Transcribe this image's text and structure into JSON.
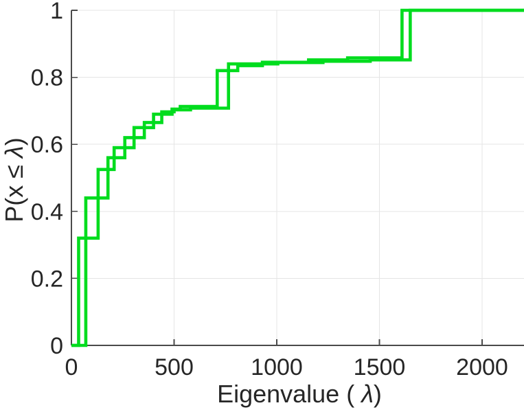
{
  "figure": {
    "background": "#ffffff",
    "kind": "MATLAB-style empirical CDF plot"
  },
  "labels": {
    "xlabel_prefix": "Eigenvalue ( ",
    "ylabel_prefix": "P(x ≤ ",
    "lambda": "λ",
    "close_paren": ")"
  },
  "chart_data": {
    "type": "line",
    "subtype": "ecdf-stairs",
    "title": "",
    "xlabel": "Eigenvalue ( λ)",
    "ylabel": "P(x ≤ λ)",
    "xlim": [
      0,
      2204
    ],
    "ylim": [
      0,
      1
    ],
    "xticks": [
      0,
      500,
      1000,
      1500,
      2000
    ],
    "xtick_labels": [
      "0",
      "500",
      "1000",
      "1500",
      "2000"
    ],
    "yticks": [
      0,
      0.2,
      0.4,
      0.6,
      0.8,
      1
    ],
    "ytick_labels": [
      "0",
      "0.2",
      "0.4",
      "0.6",
      "0.8",
      "1"
    ],
    "grid": true,
    "legend": null,
    "colors": {
      "line": "#00dc1e",
      "axis": "#4a4a4a",
      "grid": "#e5e5e5",
      "tick_text": "#262626"
    },
    "series": [
      {
        "name": "ecdf-curve-1",
        "jumps": [
          [
            35,
            0.32
          ],
          [
            130,
            0.525
          ],
          [
            208,
            0.59
          ],
          [
            305,
            0.65
          ],
          [
            400,
            0.69
          ],
          [
            490,
            0.705
          ],
          [
            530,
            0.713
          ],
          [
            710,
            0.82
          ],
          [
            810,
            0.835
          ],
          [
            930,
            0.845
          ],
          [
            1155,
            0.852
          ],
          [
            1345,
            0.858
          ],
          [
            1610,
            1.0
          ]
        ]
      },
      {
        "name": "ecdf-curve-2",
        "jumps": [
          [
            70,
            0.44
          ],
          [
            178,
            0.56
          ],
          [
            260,
            0.62
          ],
          [
            355,
            0.665
          ],
          [
            440,
            0.697
          ],
          [
            500,
            0.703
          ],
          [
            580,
            0.708
          ],
          [
            765,
            0.84
          ],
          [
            1005,
            0.844
          ],
          [
            1225,
            0.848
          ],
          [
            1455,
            0.852
          ],
          [
            1650,
            1.0
          ]
        ]
      }
    ]
  }
}
